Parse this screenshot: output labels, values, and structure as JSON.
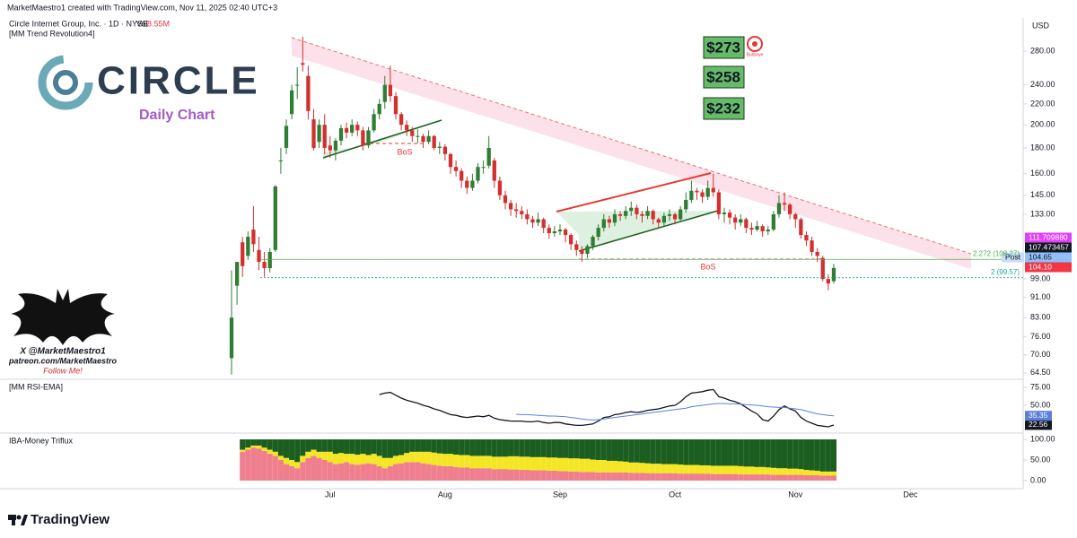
{
  "header": "MarketMaestro1 created with TradingView.com, Nov 11, 2025 02:40 UTC+3",
  "branding": {
    "logo_text": "CIRCLE",
    "subtitle": "Daily Chart"
  },
  "watermark": {
    "handle": "X @MarketMaestro1",
    "patreon": "patreon.com/MarketMaestro",
    "cta": "Follow Me!"
  },
  "footer": "TradingView",
  "chart_data": [
    {
      "type": "candlestick",
      "title": "Circle Internet Group, Inc. · 1D · NYSE",
      "volume_label": "Vol",
      "volume": "8.55M",
      "indicator": "[MM Trend Revolution4]",
      "currency": "USD",
      "targets": [
        "$273",
        "$258",
        "$232"
      ],
      "target_icon": "Bullseye",
      "annotations": [
        "BoS",
        "BoS"
      ],
      "up_color": "#2e7d32",
      "down_color": "#d32f2f",
      "log_scale": true,
      "grid": false,
      "open": [
        69,
        96,
        117,
        110,
        124,
        113,
        107,
        104,
        113,
        170,
        180,
        210,
        240,
        265,
        250,
        205,
        185,
        200,
        182,
        178,
        186,
        197,
        193,
        200,
        195,
        182,
        195,
        210,
        222,
        240,
        228,
        210,
        200,
        195,
        190,
        190,
        185,
        190,
        180,
        181,
        175,
        165,
        162,
        155,
        150,
        155,
        165,
        166,
        170,
        155,
        145,
        140,
        136,
        135,
        133,
        130,
        128,
        130,
        125,
        122,
        123,
        124,
        121,
        116,
        113,
        111,
        115,
        120,
        125,
        130,
        128,
        133,
        132,
        135,
        137,
        133,
        132,
        135,
        130,
        128,
        132,
        133,
        130,
        136,
        142,
        148,
        147,
        144,
        150,
        147,
        133,
        134,
        131,
        128,
        130,
        125,
        124,
        126,
        123,
        124,
        133,
        140,
        139,
        133,
        130,
        121,
        118,
        112,
        109,
        99,
        98
      ],
      "high": [
        103,
        107,
        120,
        123,
        138,
        120,
        112,
        114,
        152,
        180,
        205,
        240,
        260,
        299,
        262,
        215,
        205,
        210,
        190,
        188,
        200,
        202,
        205,
        203,
        198,
        198,
        215,
        225,
        250,
        262,
        232,
        212,
        204,
        198,
        196,
        192,
        195,
        191,
        185,
        183,
        176,
        170,
        164,
        158,
        160,
        168,
        170,
        190,
        172,
        158,
        148,
        142,
        140,
        138,
        136,
        132,
        134,
        131,
        127,
        126,
        127,
        125,
        122,
        118,
        115,
        116,
        121,
        127,
        133,
        132,
        136,
        135,
        138,
        141,
        139,
        135,
        138,
        136,
        131,
        134,
        136,
        134,
        138,
        147,
        155,
        150,
        149,
        155,
        160,
        149,
        137,
        136,
        133,
        133,
        131,
        128,
        129,
        127,
        126,
        135,
        145,
        147,
        140,
        134,
        131,
        123,
        120,
        114,
        110,
        101,
        106
      ],
      "low": [
        64,
        88,
        100,
        108,
        112,
        103,
        100,
        102,
        112,
        160,
        175,
        205,
        225,
        255,
        205,
        178,
        180,
        175,
        172,
        170,
        182,
        188,
        190,
        190,
        178,
        180,
        193,
        205,
        215,
        222,
        205,
        195,
        190,
        185,
        184,
        180,
        183,
        178,
        175,
        170,
        160,
        158,
        150,
        146,
        148,
        153,
        160,
        164,
        150,
        142,
        136,
        132,
        131,
        130,
        127,
        125,
        126,
        122,
        119,
        120,
        121,
        117,
        113,
        110,
        107,
        109,
        113,
        118,
        123,
        125,
        126,
        129,
        130,
        132,
        130,
        128,
        130,
        127,
        125,
        126,
        129,
        127,
        129,
        134,
        140,
        142,
        140,
        142,
        144,
        130,
        128,
        127,
        124,
        126,
        122,
        121,
        123,
        120,
        121,
        123,
        131,
        135,
        130,
        125,
        119,
        115,
        110,
        107,
        98,
        94,
        97
      ],
      "close": [
        83,
        107,
        105,
        120,
        116,
        107,
        104,
        112,
        151,
        170,
        199,
        234,
        240,
        263,
        213,
        180,
        200,
        180,
        178,
        186,
        197,
        193,
        200,
        195,
        182,
        195,
        210,
        220,
        240,
        228,
        210,
        200,
        195,
        190,
        190,
        185,
        190,
        180,
        181,
        175,
        165,
        162,
        155,
        150,
        155,
        165,
        165,
        180,
        155,
        145,
        140,
        136,
        135,
        133,
        130,
        128,
        130,
        125,
        122,
        123,
        124,
        121,
        116,
        113,
        111,
        115,
        120,
        125,
        130,
        128,
        133,
        132,
        135,
        137,
        133,
        132,
        135,
        130,
        128,
        132,
        133,
        130,
        136,
        142,
        148,
        147,
        144,
        150,
        147,
        133,
        134,
        131,
        128,
        130,
        125,
        124,
        126,
        123,
        124,
        133,
        140,
        139,
        133,
        130,
        121,
        118,
        112,
        110,
        99,
        97,
        104.1
      ],
      "xlim": [
        -42.3,
        144.6
      ],
      "xticks": [
        {
          "value": 18,
          "label": "Jul"
        },
        {
          "value": 39,
          "label": "Aug"
        },
        {
          "value": 60,
          "label": "Sep"
        },
        {
          "value": 81,
          "label": "Oct"
        },
        {
          "value": 103,
          "label": "Nov"
        },
        {
          "value": 124,
          "label": "Dec"
        }
      ],
      "ylim": [
        62.9,
        323
      ],
      "yticks": [
        {
          "value": 64.5,
          "label": "64.50"
        },
        {
          "value": 70,
          "label": "70.00"
        },
        {
          "value": 76,
          "label": "76.00"
        },
        {
          "value": 83,
          "label": "83.00"
        },
        {
          "value": 91,
          "label": "91.00"
        },
        {
          "value": 99,
          "label": "99.00"
        },
        {
          "value": 133,
          "label": "133.00"
        },
        {
          "value": 145,
          "label": "145.00"
        },
        {
          "value": 160,
          "label": "160.00"
        },
        {
          "value": 180,
          "label": "180.00"
        },
        {
          "value": 200,
          "label": "200.00"
        },
        {
          "value": 220,
          "label": "220.00"
        },
        {
          "value": 240,
          "label": "240.00"
        },
        {
          "value": 280,
          "label": "280.00"
        }
      ],
      "levels": [
        {
          "value": 108.27,
          "label": "2.272 (108.27)",
          "color": "#4caf50"
        },
        {
          "value": 99.57,
          "label": "2 (99.57)",
          "color": "#26a69a"
        }
      ],
      "price_labels": [
        {
          "value": 111.70988,
          "label": "111.709880",
          "color": "#e040fb"
        },
        {
          "value": 107.473457,
          "label": "107.473457",
          "color": "#131722"
        },
        {
          "value": 104.65,
          "label": "104.65",
          "tag": "Post",
          "color": "#90bff9"
        },
        {
          "value": 104.1,
          "label": "104.10",
          "color": "#f23645"
        }
      ]
    },
    {
      "type": "line",
      "title": "[MM RSI-EMA]",
      "series": [
        {
          "color": "#131722",
          "values": [
            null,
            null,
            null,
            null,
            null,
            null,
            null,
            null,
            null,
            null,
            null,
            null,
            null,
            null,
            null,
            null,
            null,
            null,
            null,
            null,
            null,
            null,
            null,
            null,
            null,
            null,
            null,
            65,
            67,
            68,
            64,
            60,
            57,
            55,
            53,
            50,
            48,
            45,
            43,
            40,
            37,
            36,
            34,
            33,
            34,
            35,
            34,
            36,
            32,
            30,
            29,
            28,
            28,
            28,
            27,
            27,
            28,
            26,
            25,
            26,
            26,
            24,
            23,
            22,
            22,
            23,
            24,
            28,
            33,
            34,
            37,
            38,
            40,
            41,
            40,
            41,
            43,
            44,
            45,
            47,
            49,
            50,
            55,
            62,
            67,
            68,
            69,
            71,
            72,
            62,
            60,
            57,
            55,
            52,
            47,
            42,
            38,
            30,
            28,
            35,
            44,
            49,
            45,
            42,
            33,
            28,
            25,
            22,
            21,
            20,
            22.56
          ]
        },
        {
          "color": "#5b7fdb",
          "values": [
            null,
            null,
            null,
            null,
            null,
            null,
            null,
            null,
            null,
            null,
            null,
            null,
            null,
            null,
            null,
            null,
            null,
            null,
            null,
            null,
            null,
            null,
            null,
            null,
            null,
            null,
            null,
            null,
            null,
            null,
            null,
            null,
            null,
            null,
            null,
            null,
            null,
            null,
            null,
            null,
            null,
            null,
            null,
            null,
            null,
            null,
            null,
            null,
            null,
            null,
            null,
            null,
            37.5,
            37,
            37,
            36.5,
            36,
            35.5,
            35,
            35,
            34.5,
            34,
            33,
            32,
            31,
            30,
            29.5,
            30,
            31,
            32,
            33,
            34,
            35,
            36,
            37,
            38,
            39,
            40,
            41,
            42,
            43,
            44,
            45,
            46,
            48,
            49,
            50,
            51,
            52,
            52.5,
            52.5,
            52,
            52,
            51.5,
            51,
            50.5,
            50,
            49,
            48,
            47.5,
            47,
            47,
            46,
            45,
            44,
            42,
            40,
            38,
            37,
            36,
            35.35
          ]
        }
      ],
      "ylim": [
        12.5,
        83.75
      ],
      "yticks": [
        {
          "value": 75,
          "label": "75.00"
        },
        {
          "value": 50,
          "label": "50.00"
        }
      ]
    },
    {
      "type": "stacked-bar",
      "title": "IBA-Money Triflux",
      "series": [
        {
          "color": "#ef7f8f",
          "values": [
            null,
            null,
            70,
            75,
            80,
            78,
            72,
            65,
            60,
            50,
            40,
            35,
            30,
            45,
            55,
            60,
            55,
            50,
            45,
            40,
            42,
            45,
            40,
            38,
            40,
            42,
            40,
            35,
            30,
            35,
            40,
            42,
            45,
            45,
            45,
            42,
            40,
            38,
            36,
            35,
            35,
            33,
            32,
            32,
            30,
            30,
            30,
            30,
            28,
            28,
            28,
            27,
            27,
            26,
            26,
            25,
            25,
            25,
            24,
            24,
            23,
            23,
            22,
            22,
            21,
            21,
            21,
            20,
            20,
            20,
            20,
            20,
            20,
            19,
            19,
            19,
            18,
            18,
            18,
            18,
            18,
            18,
            17,
            17,
            17,
            17,
            17,
            17,
            16,
            16,
            16,
            16,
            16,
            15,
            15,
            15,
            15,
            15,
            15,
            14,
            14,
            14,
            14,
            14,
            14,
            13,
            13,
            13,
            12,
            12,
            12
          ]
        },
        {
          "color": "#f5e625",
          "values": [
            null,
            null,
            5,
            5,
            5,
            7,
            8,
            10,
            10,
            10,
            15,
            15,
            15,
            15,
            15,
            15,
            15,
            20,
            25,
            25,
            25,
            20,
            25,
            25,
            25,
            20,
            25,
            25,
            25,
            20,
            20,
            20,
            22,
            25,
            25,
            28,
            30,
            30,
            30,
            30,
            30,
            30,
            30,
            30,
            30,
            30,
            30,
            30,
            30,
            30,
            30,
            32,
            32,
            32,
            32,
            32,
            32,
            32,
            32,
            32,
            32,
            32,
            32,
            32,
            32,
            32,
            30,
            30,
            30,
            28,
            28,
            27,
            26,
            25,
            25,
            24,
            24,
            23,
            23,
            22,
            22,
            22,
            22,
            21,
            21,
            21,
            20,
            20,
            20,
            20,
            20,
            20,
            20,
            20,
            19,
            19,
            18,
            18,
            17,
            17,
            16,
            16,
            15,
            15,
            14,
            13,
            12,
            11,
            10,
            10,
            10
          ]
        },
        {
          "color": "#1b5e20",
          "values": [
            null,
            null,
            25,
            20,
            15,
            15,
            20,
            25,
            30,
            40,
            45,
            50,
            55,
            40,
            30,
            25,
            30,
            30,
            30,
            35,
            33,
            35,
            35,
            37,
            35,
            38,
            35,
            40,
            45,
            45,
            40,
            38,
            33,
            30,
            30,
            30,
            30,
            32,
            34,
            35,
            35,
            37,
            38,
            38,
            40,
            40,
            40,
            40,
            42,
            42,
            42,
            41,
            41,
            42,
            42,
            43,
            43,
            43,
            44,
            44,
            45,
            45,
            46,
            46,
            47,
            47,
            49,
            50,
            50,
            52,
            52,
            53,
            54,
            56,
            56,
            57,
            58,
            59,
            59,
            60,
            60,
            60,
            61,
            62,
            62,
            62,
            63,
            63,
            64,
            64,
            64,
            64,
            64,
            65,
            66,
            66,
            67,
            67,
            68,
            69,
            70,
            70,
            71,
            71,
            72,
            74,
            75,
            76,
            78,
            78,
            78
          ]
        }
      ],
      "ylim": [
        -19.6,
        110.9
      ],
      "yticks": [
        {
          "value": 100,
          "label": "100.00"
        },
        {
          "value": 50,
          "label": "50.00"
        },
        {
          "value": 0,
          "label": "0.00"
        }
      ]
    }
  ]
}
